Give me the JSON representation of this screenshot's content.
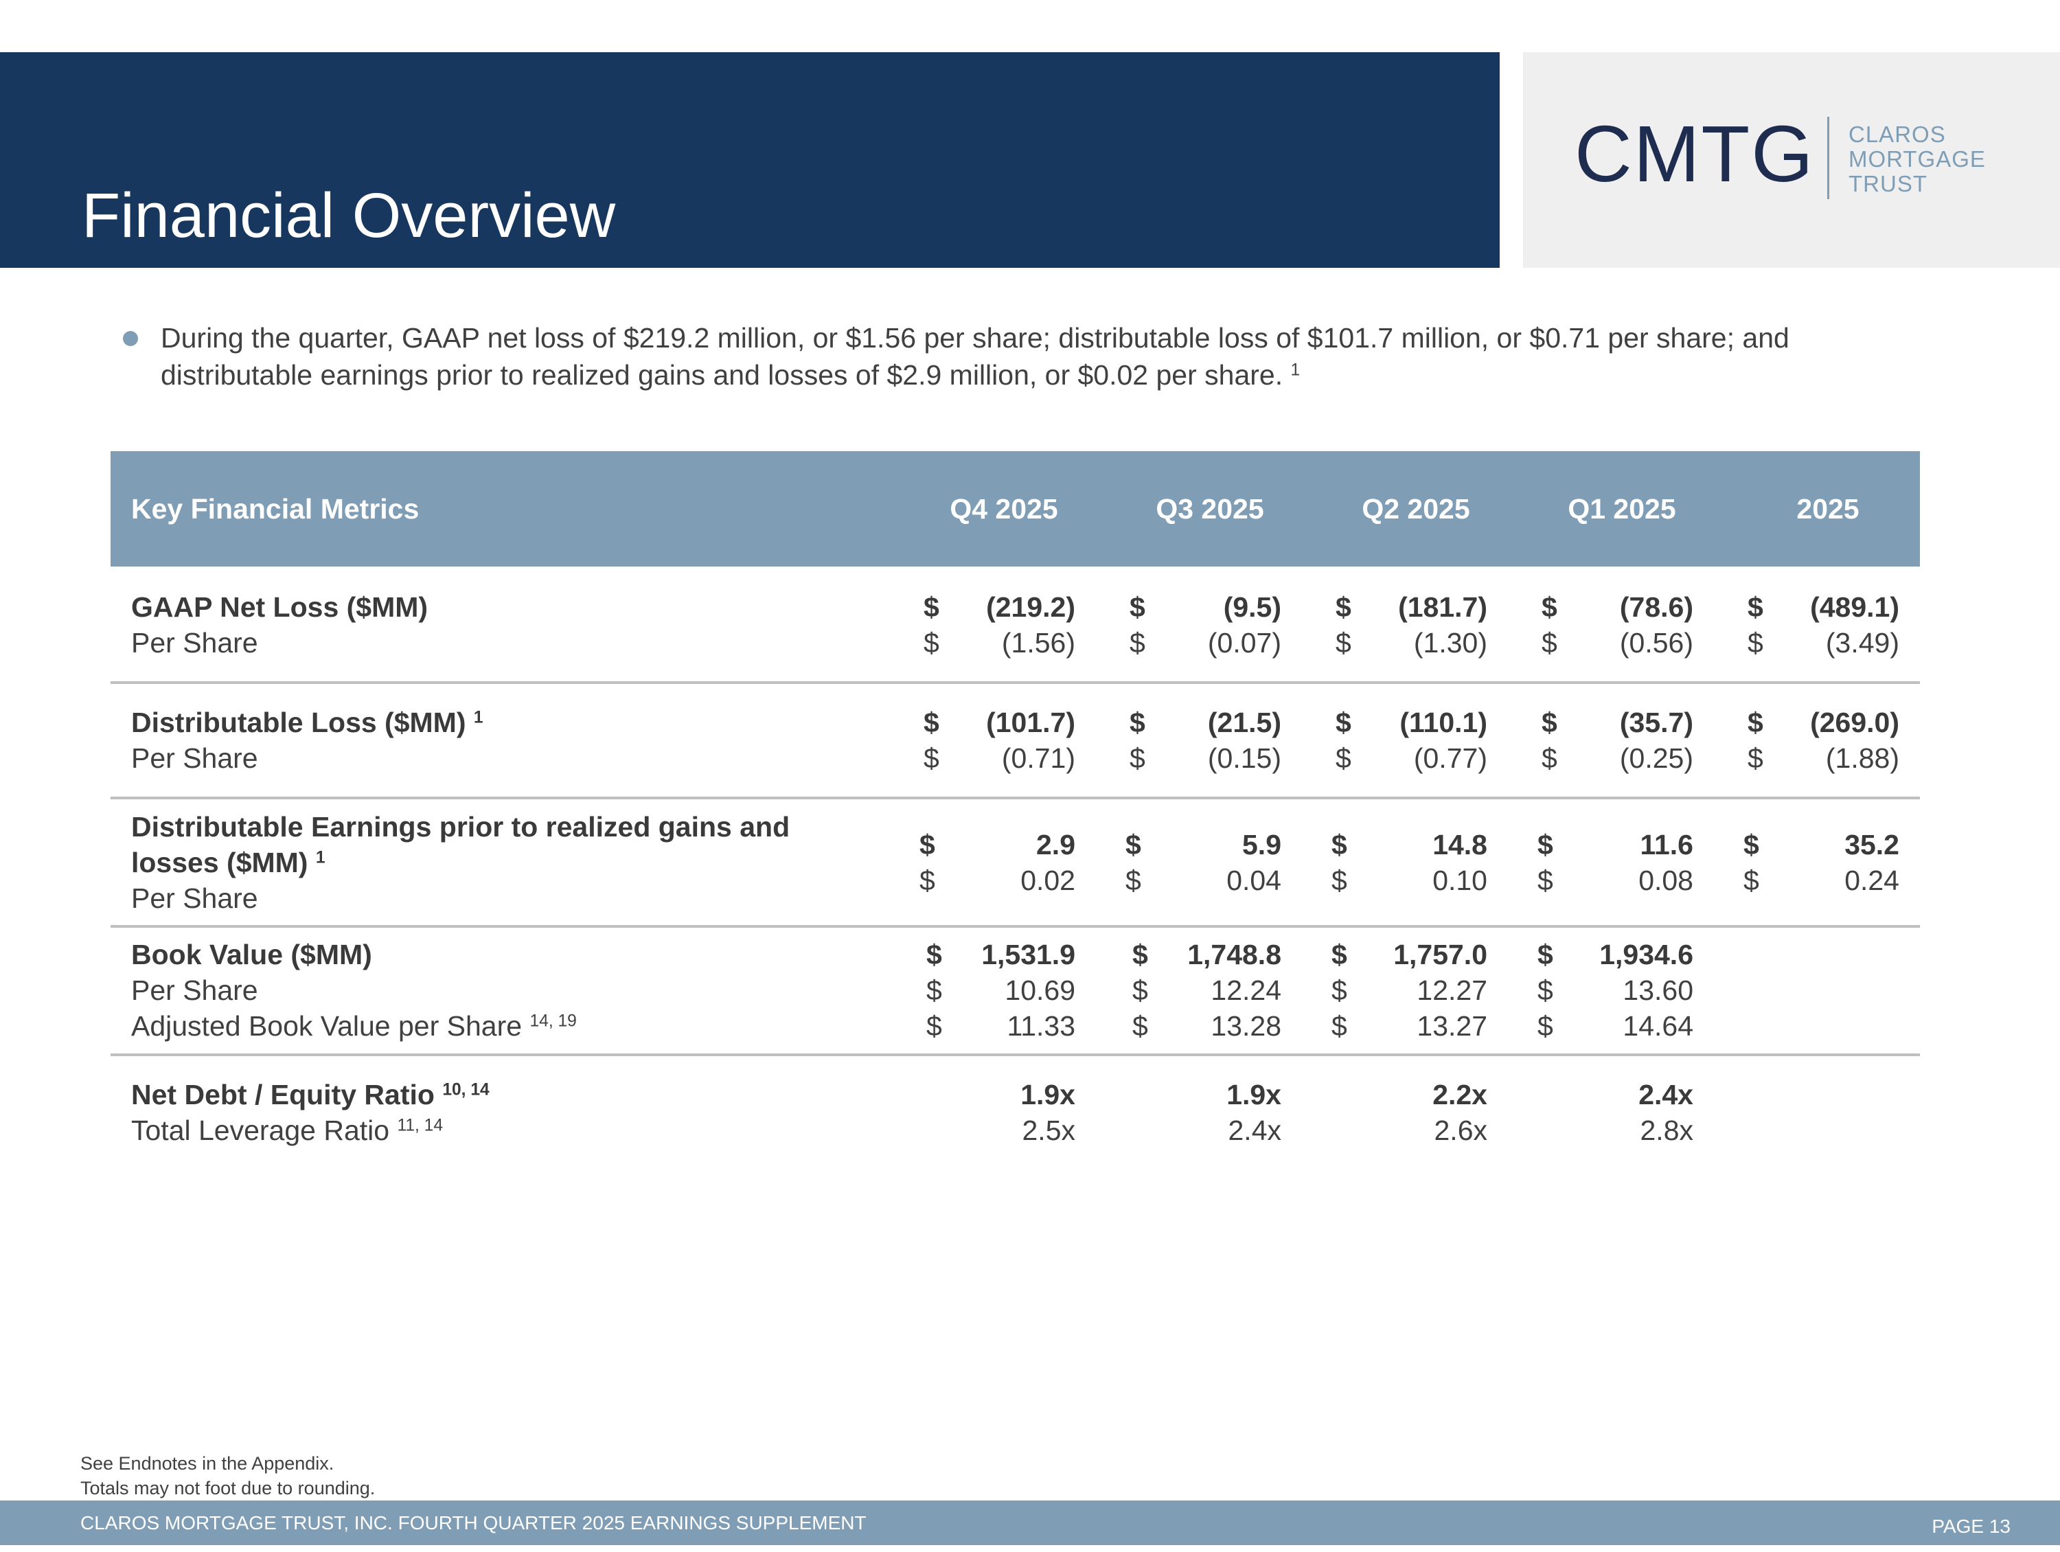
{
  "header": {
    "title": "Financial Overview",
    "logo": {
      "mark": "CMTG",
      "name_lines": [
        "CLAROS",
        "MORTGAGE",
        "TRUST"
      ]
    }
  },
  "summary": {
    "text": "During the quarter, GAAP net loss of $219.2 million, or $1.56 per share; distributable loss of $101.7 million, or $0.71 per share; and distributable earnings prior to realized gains and losses of $2.9 million, or $0.02 per share.",
    "footnote": "1"
  },
  "table": {
    "metric_header": "Key Financial Metrics",
    "columns": [
      "Q4 2025",
      "Q3 2025",
      "Q2 2025",
      "Q1 2025",
      "2025"
    ],
    "currency_symbol": "$",
    "rows": {
      "gaap_net_loss": {
        "label": "GAAP Net Loss ($MM)",
        "values": [
          "(219.2)",
          "(9.5)",
          "(181.7)",
          "(78.6)",
          "(489.1)"
        ],
        "per_share_label": "Per Share",
        "per_share": [
          "(1.56)",
          "(0.07)",
          "(1.30)",
          "(0.56)",
          "(3.49)"
        ]
      },
      "distributable_loss": {
        "label": "Distributable Loss ($MM)",
        "footnote": "1",
        "values": [
          "(101.7)",
          "(21.5)",
          "(110.1)",
          "(35.7)",
          "(269.0)"
        ],
        "per_share_label": "Per Share",
        "per_share": [
          "(0.71)",
          "(0.15)",
          "(0.77)",
          "(0.25)",
          "(1.88)"
        ]
      },
      "distributable_earnings": {
        "label_line1": "Distributable Earnings prior to realized gains and",
        "label_line2": "losses ($MM)",
        "footnote": "1",
        "values": [
          "2.9",
          "5.9",
          "14.8",
          "11.6",
          "35.2"
        ],
        "per_share_label": "Per Share",
        "per_share": [
          "0.02",
          "0.04",
          "0.10",
          "0.08",
          "0.24"
        ]
      },
      "book_value": {
        "label": "Book Value ($MM)",
        "values": [
          "1,531.9",
          "1,748.8",
          "1,757.0",
          "1,934.6"
        ],
        "per_share_label": "Per Share",
        "per_share": [
          "10.69",
          "12.24",
          "12.27",
          "13.60"
        ],
        "adjusted_label": "Adjusted Book Value per Share",
        "adjusted_footnote": "14, 19",
        "adjusted": [
          "11.33",
          "13.28",
          "13.27",
          "14.64"
        ]
      },
      "leverage": {
        "label": "Net Debt / Equity Ratio",
        "footnote": "10, 14",
        "values": [
          "1.9x",
          "1.9x",
          "2.2x",
          "2.4x"
        ],
        "total_label": "Total Leverage Ratio",
        "total_footnote": "11, 14",
        "total": [
          "2.5x",
          "2.4x",
          "2.6x",
          "2.8x"
        ]
      }
    }
  },
  "notes": [
    "See Endnotes in the Appendix.",
    "Totals may not foot due to rounding."
  ],
  "footer": {
    "left": "CLAROS MORTGAGE TRUST, INC. FOURTH QUARTER 2025 EARNINGS SUPPLEMENT",
    "right": "PAGE 13"
  },
  "colors": {
    "navy": "#17375e",
    "steel": "#7f9db4",
    "logo_bg": "#efefef"
  }
}
